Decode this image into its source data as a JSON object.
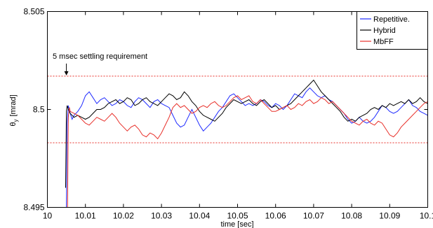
{
  "chart_data": {
    "type": "line",
    "title": "",
    "xlabel": "time [sec]",
    "ylabel": "θ",
    "ylabel_subscript": "y",
    "ylabel_unit": "[mrad]",
    "xlim": [
      10.0,
      10.1
    ],
    "ylim": [
      8.495,
      8.505
    ],
    "x_ticks": [
      10.0,
      10.01,
      10.02,
      10.03,
      10.04,
      10.05,
      10.06,
      10.07,
      10.08,
      10.09,
      10.1
    ],
    "x_tick_labels": [
      "10",
      "10.01",
      "10.02",
      "10.03",
      "10.04",
      "10.05",
      "10.06",
      "10.07",
      "10.08",
      "10.09",
      "10.1"
    ],
    "y_ticks": [
      8.495,
      8.5,
      8.505
    ],
    "y_tick_labels": [
      "8.495",
      "8.5",
      "8.505"
    ],
    "grid": false,
    "legend_position": "top-right",
    "reference_lines": {
      "values": [
        8.5017,
        8.4983
      ],
      "color": "#e8302a",
      "style": "dotted"
    },
    "annotation": {
      "text": "5 msec settling requirement",
      "points_to": [
        10.005,
        8.5017
      ]
    },
    "series": [
      {
        "name": "Repetitive.",
        "color": "#1f2bff",
        "x": [
          10.005,
          10.0052,
          10.0055,
          10.006,
          10.0065,
          10.007,
          10.008,
          10.009,
          10.01,
          10.011,
          10.012,
          10.013,
          10.014,
          10.015,
          10.016,
          10.017,
          10.018,
          10.019,
          10.02,
          10.021,
          10.022,
          10.023,
          10.024,
          10.025,
          10.026,
          10.027,
          10.028,
          10.029,
          10.03,
          10.031,
          10.032,
          10.033,
          10.034,
          10.035,
          10.036,
          10.037,
          10.038,
          10.039,
          10.04,
          10.041,
          10.042,
          10.043,
          10.044,
          10.045,
          10.046,
          10.047,
          10.048,
          10.049,
          10.05,
          10.051,
          10.052,
          10.053,
          10.054,
          10.055,
          10.056,
          10.057,
          10.058,
          10.059,
          10.06,
          10.061,
          10.062,
          10.063,
          10.064,
          10.065,
          10.066,
          10.067,
          10.068,
          10.069,
          10.07,
          10.071,
          10.072,
          10.073,
          10.074,
          10.075,
          10.076,
          10.077,
          10.078,
          10.079,
          10.08,
          10.081,
          10.082,
          10.083,
          10.084,
          10.085,
          10.086,
          10.087,
          10.088,
          10.089,
          10.09,
          10.091,
          10.092,
          10.093,
          10.094,
          10.095,
          10.096,
          10.097,
          10.098,
          10.099,
          10.1
        ],
        "y": [
          8.493,
          8.4993,
          8.5002,
          8.4998,
          8.4995,
          8.4997,
          8.4999,
          8.5002,
          8.5007,
          8.5009,
          8.5006,
          8.5003,
          8.5005,
          8.5006,
          8.5004,
          8.5002,
          8.5003,
          8.5005,
          8.5004,
          8.5002,
          8.5001,
          8.5004,
          8.5006,
          8.5005,
          8.5003,
          8.5001,
          8.5004,
          8.5005,
          8.5003,
          8.5002,
          8.5001,
          8.4997,
          8.4993,
          8.4991,
          8.4992,
          8.4996,
          8.5,
          8.4996,
          8.4992,
          8.4989,
          8.4991,
          8.4993,
          8.4996,
          8.4999,
          8.5001,
          8.5004,
          8.5007,
          8.5008,
          8.5006,
          8.5004,
          8.5002,
          8.5003,
          8.5002,
          8.5003,
          8.5005,
          8.5004,
          8.5002,
          8.5001,
          8.5003,
          8.5002,
          8.5,
          8.5002,
          8.5005,
          8.5008,
          8.5007,
          8.5006,
          8.5009,
          8.5011,
          8.5009,
          8.5007,
          8.5006,
          8.5007,
          8.5005,
          8.5004,
          8.5002,
          8.5,
          8.4998,
          8.4995,
          8.4993,
          8.4994,
          8.4996,
          8.4994,
          8.4993,
          8.4994,
          8.4996,
          8.4999,
          8.5002,
          8.5001,
          8.4999,
          8.4998,
          8.4999,
          8.5001,
          8.5003,
          8.5005,
          8.5002,
          8.5001,
          8.4999,
          8.4998,
          8.4997
        ]
      },
      {
        "name": "Hybrid",
        "color": "#000000",
        "x": [
          10.0048,
          10.005,
          10.0052,
          10.0055,
          10.006,
          10.007,
          10.008,
          10.009,
          10.01,
          10.011,
          10.012,
          10.013,
          10.014,
          10.015,
          10.016,
          10.017,
          10.018,
          10.019,
          10.02,
          10.021,
          10.022,
          10.023,
          10.024,
          10.025,
          10.026,
          10.027,
          10.028,
          10.029,
          10.03,
          10.031,
          10.032,
          10.033,
          10.034,
          10.035,
          10.036,
          10.037,
          10.038,
          10.039,
          10.04,
          10.041,
          10.042,
          10.043,
          10.044,
          10.045,
          10.046,
          10.047,
          10.048,
          10.049,
          10.05,
          10.051,
          10.052,
          10.053,
          10.054,
          10.055,
          10.056,
          10.057,
          10.058,
          10.059,
          10.06,
          10.061,
          10.062,
          10.063,
          10.064,
          10.065,
          10.066,
          10.067,
          10.068,
          10.069,
          10.07,
          10.071,
          10.072,
          10.073,
          10.074,
          10.075,
          10.076,
          10.077,
          10.078,
          10.079,
          10.08,
          10.081,
          10.082,
          10.083,
          10.084,
          10.085,
          10.086,
          10.087,
          10.088,
          10.089,
          10.09,
          10.091,
          10.092,
          10.093,
          10.094,
          10.095,
          10.096,
          10.097,
          10.098,
          10.099,
          10.1
        ],
        "y": [
          8.496,
          8.4999,
          8.5002,
          8.5,
          8.4998,
          8.4996,
          8.4997,
          8.4996,
          8.4995,
          8.4996,
          8.4998,
          8.5,
          8.5,
          8.5001,
          8.5003,
          8.5004,
          8.5005,
          8.5003,
          8.5004,
          8.5006,
          8.5005,
          8.5002,
          8.5003,
          8.5005,
          8.5006,
          8.5004,
          8.5003,
          8.5002,
          8.5004,
          8.5006,
          8.5008,
          8.5007,
          8.5005,
          8.5006,
          8.5009,
          8.5007,
          8.5004,
          8.5002,
          8.4999,
          8.4997,
          8.4996,
          8.4995,
          8.4994,
          8.4996,
          8.4998,
          8.5001,
          8.5003,
          8.5005,
          8.5004,
          8.5003,
          8.5004,
          8.5005,
          8.5003,
          8.5002,
          8.5004,
          8.5005,
          8.5003,
          8.5001,
          8.5002,
          8.5,
          8.5001,
          8.5002,
          8.5003,
          8.5005,
          8.5007,
          8.5009,
          8.5011,
          8.5013,
          8.5015,
          8.5012,
          8.5009,
          8.5007,
          8.5005,
          8.5003,
          8.5001,
          8.4999,
          8.4996,
          8.4994,
          8.4995,
          8.4994,
          8.4996,
          8.4997,
          8.4998,
          8.5,
          8.5001,
          8.5,
          8.5002,
          8.5001,
          8.5003,
          8.5002,
          8.5003,
          8.5004,
          8.5003,
          8.5005,
          8.5003,
          8.5004,
          8.5006,
          8.5004,
          8.5003
        ]
      },
      {
        "name": "MbFF",
        "color": "#e8302a",
        "x": [
          10.0053,
          10.0055,
          10.0058,
          10.006,
          10.007,
          10.008,
          10.009,
          10.01,
          10.011,
          10.012,
          10.013,
          10.014,
          10.015,
          10.016,
          10.017,
          10.018,
          10.019,
          10.02,
          10.021,
          10.022,
          10.023,
          10.024,
          10.025,
          10.026,
          10.027,
          10.028,
          10.029,
          10.03,
          10.031,
          10.032,
          10.033,
          10.034,
          10.035,
          10.036,
          10.037,
          10.038,
          10.039,
          10.04,
          10.041,
          10.042,
          10.043,
          10.044,
          10.045,
          10.046,
          10.047,
          10.048,
          10.049,
          10.05,
          10.051,
          10.052,
          10.053,
          10.054,
          10.055,
          10.056,
          10.057,
          10.058,
          10.059,
          10.06,
          10.061,
          10.062,
          10.063,
          10.064,
          10.065,
          10.066,
          10.067,
          10.068,
          10.069,
          10.07,
          10.071,
          10.072,
          10.073,
          10.074,
          10.075,
          10.076,
          10.077,
          10.078,
          10.079,
          10.08,
          10.081,
          10.082,
          10.083,
          10.084,
          10.085,
          10.086,
          10.087,
          10.088,
          10.089,
          10.09,
          10.091,
          10.092,
          10.093,
          10.094,
          10.095,
          10.096,
          10.097,
          10.098,
          10.099,
          10.1
        ],
        "y": [
          8.4945,
          8.4996,
          8.5001,
          8.4999,
          8.4998,
          8.4997,
          8.4995,
          8.4993,
          8.4992,
          8.4994,
          8.4996,
          8.4995,
          8.4994,
          8.4996,
          8.4998,
          8.4996,
          8.4993,
          8.4991,
          8.4989,
          8.4991,
          8.4992,
          8.499,
          8.4987,
          8.4986,
          8.4988,
          8.4987,
          8.4985,
          8.4988,
          8.4992,
          8.4996,
          8.5001,
          8.5003,
          8.5001,
          8.5002,
          8.5,
          8.4998,
          8.4999,
          8.5001,
          8.5002,
          8.5001,
          8.5003,
          8.5004,
          8.5002,
          8.5001,
          8.5002,
          8.5004,
          8.5006,
          8.5007,
          8.5005,
          8.5006,
          8.5007,
          8.5004,
          8.5003,
          8.5005,
          8.5003,
          8.5001,
          8.4999,
          8.4999,
          8.5,
          8.5001,
          8.5002,
          8.5,
          8.5001,
          8.5003,
          8.5002,
          8.5004,
          8.5005,
          8.5003,
          8.5004,
          8.5006,
          8.5005,
          8.5003,
          8.5004,
          8.5002,
          8.5,
          8.4998,
          8.4996,
          8.4994,
          8.4993,
          8.4992,
          8.4994,
          8.4995,
          8.4993,
          8.4992,
          8.4994,
          8.4993,
          8.499,
          8.4987,
          8.4986,
          8.4988,
          8.4991,
          8.4993,
          8.4995,
          8.4997,
          8.4999,
          8.5001,
          8.5003,
          8.5004
        ]
      }
    ]
  }
}
